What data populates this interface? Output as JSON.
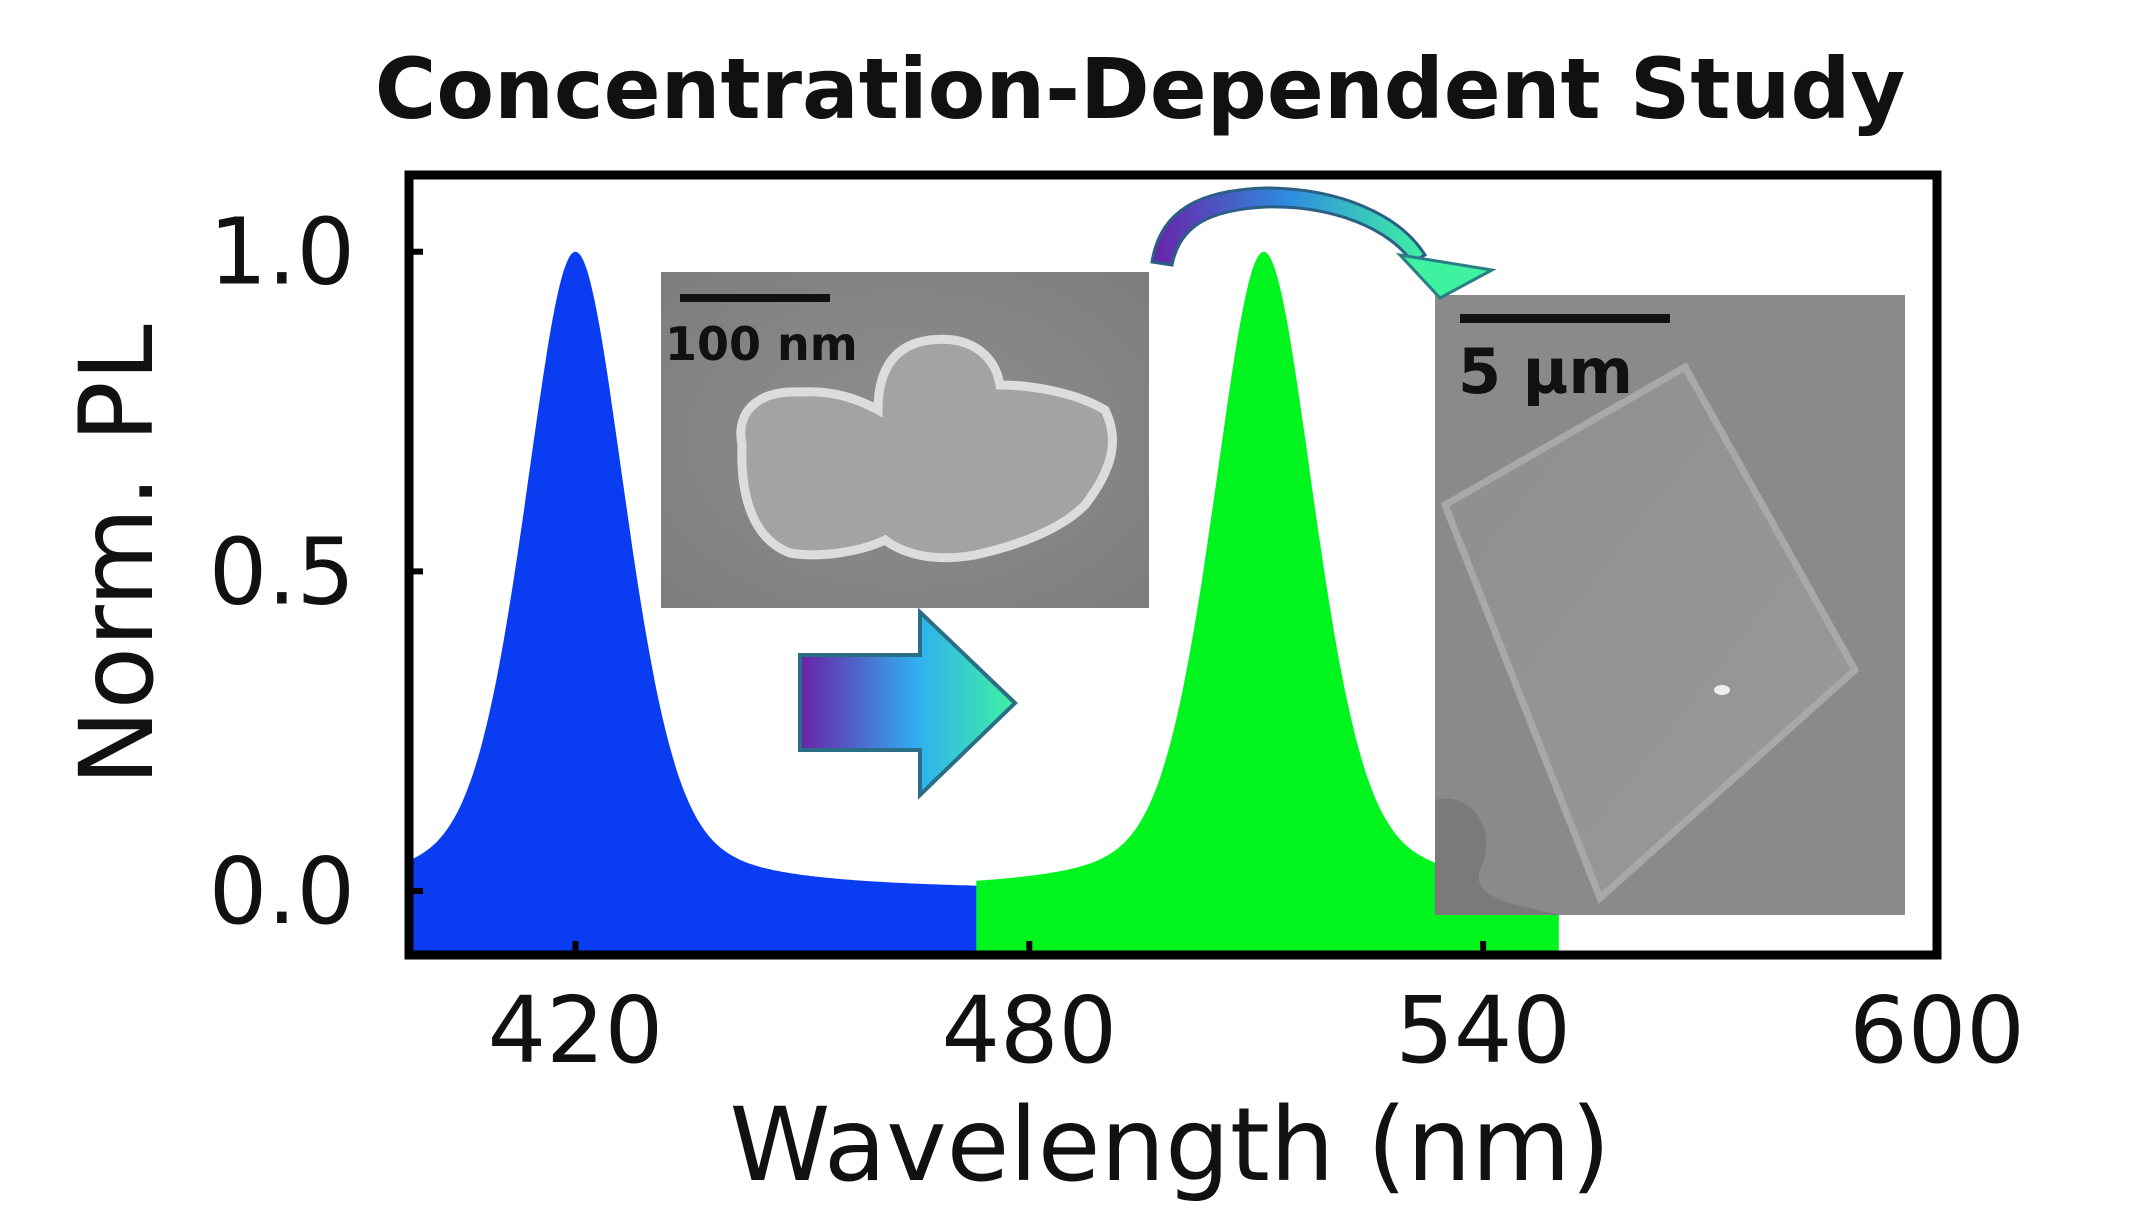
{
  "chart_data": {
    "type": "area",
    "title": "Concentration-Dependent Study",
    "xlabel": "Wavelength (nm)",
    "ylabel": "Norm. PL",
    "xlim": [
      398,
      600
    ],
    "ylim": [
      -0.1,
      1.12
    ],
    "xticks": [
      420,
      480,
      540,
      600
    ],
    "xtick_labels": [
      "420",
      "480",
      "540",
      "600"
    ],
    "yticks": [
      0.0,
      0.5,
      1.0
    ],
    "ytick_labels": [
      "0.0",
      "0.5",
      "1.0"
    ],
    "grid": false,
    "series": [
      {
        "color": "#0a3cf2",
        "peak_nm": 420,
        "fwhm_nm": 16,
        "range": [
          398,
          474
        ]
      },
      {
        "color": "#00f51e",
        "peak_nm": 511,
        "fwhm_nm": 16,
        "range": [
          473,
          550
        ]
      }
    ]
  },
  "insets": [
    {
      "scale_bar": "100 nm"
    },
    {
      "scale_bar": "5 µm"
    }
  ],
  "colors": {
    "arrow_start": "#6a22a8",
    "arrow_mid": "#2fb0f0",
    "arrow_end": "#3ff2a0"
  }
}
